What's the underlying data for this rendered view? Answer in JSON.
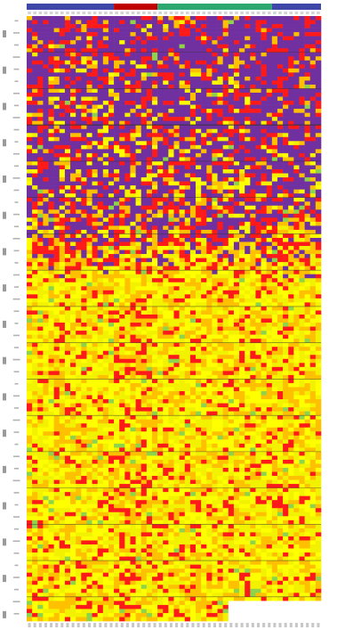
{
  "chart_data": {
    "type": "heatmap",
    "title": "",
    "xlabel": "",
    "ylabel": "",
    "grid": false,
    "legend": "none",
    "n_rows": 150,
    "n_cols": 54,
    "levels": [
      0,
      1,
      2,
      3
    ],
    "colors": {
      "0": "#7030a0",
      "1": "#ff1a1a",
      "2": "#ffc000",
      "3": "#ffff00",
      "3b": "#f2f200",
      "4": "#8ed44a"
    },
    "column_groups": [
      {
        "color": "#3f48a8",
        "col_start": 0,
        "col_end": 15
      },
      {
        "color": "#c00000",
        "col_start": 16,
        "col_end": 23
      },
      {
        "color": "#2ca870",
        "col_start": 24,
        "col_end": 44
      },
      {
        "color": "#3f48a8",
        "col_start": 45,
        "col_end": 53
      }
    ],
    "row_group_boundaries": [
      9,
      18,
      27,
      36,
      45,
      54,
      63,
      72,
      81,
      90,
      99,
      108,
      117,
      126,
      135,
      144
    ],
    "blank_region": {
      "row_start": 145,
      "row_end": 149,
      "col_start": 37,
      "col_end": 53
    }
  }
}
